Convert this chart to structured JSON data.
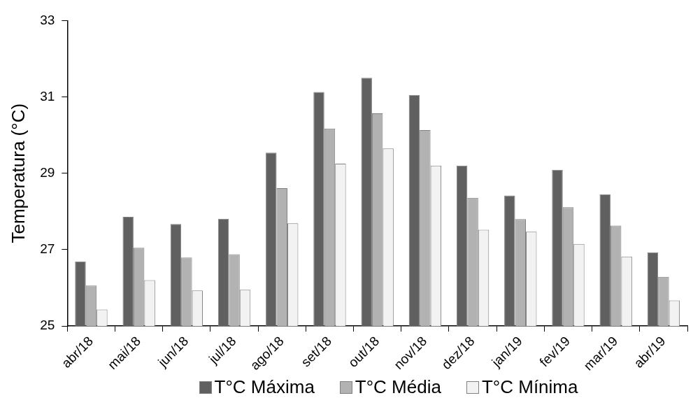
{
  "chart_data": {
    "type": "bar",
    "ylabel": "Temperatura (°C)",
    "categories": [
      "abr/18",
      "mai/18",
      "jun/18",
      "jul/18",
      "ago/18",
      "set/18",
      "out/18",
      "nov/18",
      "dez/18",
      "jan/19",
      "fev/19",
      "mar/19",
      "abr/19"
    ],
    "series": [
      {
        "name": "T°C Máxima",
        "color": "#606060",
        "values": [
          26.69,
          27.86,
          27.67,
          27.81,
          29.54,
          31.13,
          31.5,
          31.05,
          29.2,
          28.42,
          29.09,
          28.45,
          26.93
        ]
      },
      {
        "name": "T°C Média",
        "color": "#b2b2b2",
        "values": [
          26.06,
          27.05,
          26.79,
          26.88,
          28.61,
          30.17,
          30.57,
          30.13,
          28.36,
          27.8,
          28.11,
          27.63,
          26.29
        ]
      },
      {
        "name": "T°C Mínima",
        "color": "#f2f2f2",
        "values": [
          25.43,
          26.2,
          25.93,
          25.95,
          27.69,
          29.25,
          29.65,
          29.2,
          27.52,
          27.47,
          27.15,
          26.82,
          25.67
        ]
      }
    ],
    "ylim": [
      25,
      33
    ],
    "yticks": [
      25,
      27,
      29,
      31,
      33
    ],
    "grid": false,
    "legend": "bottom"
  }
}
